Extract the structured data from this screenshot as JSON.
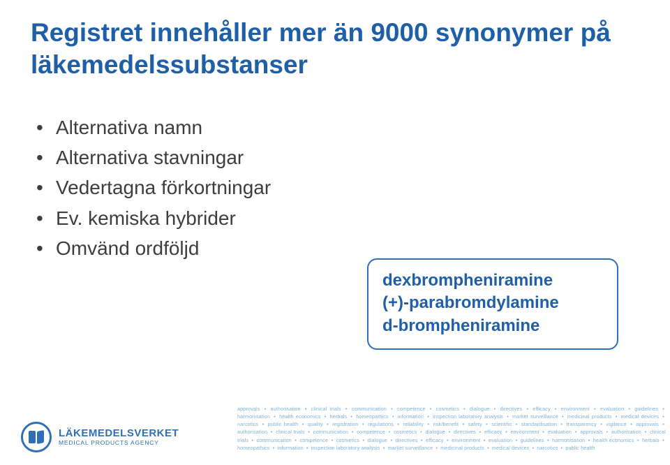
{
  "colors": {
    "title": "#1f5fa8",
    "body_text": "#3d3d3d",
    "callout_border": "#2f6fb3",
    "callout_text": "#1f5fa8",
    "logo": "#2f6fb3",
    "band_text": "#7db0d8",
    "bg": "#ffffff"
  },
  "title": "Registret innehåller mer än 9000 synonymer på läkemedelssubstanser",
  "bullets": [
    "Alternativa namn",
    "Alternativa stavningar",
    "Vedertagna förkortningar",
    "Ev. kemiska hybrider",
    "Omvänd ordföljd"
  ],
  "callout": {
    "lines": [
      "dexbrompheniramine",
      "(+)-parabromdylamine",
      "d-brompheniramine"
    ]
  },
  "logo": {
    "main": "LÄKEMEDELSVERKET",
    "sub": "MEDICAL PRODUCTS AGENCY"
  },
  "keyword_band": {
    "separator": "•",
    "words": [
      "approvals",
      "authorisation",
      "clinical trials",
      "communication",
      "competence",
      "cosmetics",
      "dialogue",
      "directives",
      "efficacy",
      "environment",
      "evaluation",
      "guidelines",
      "harmonisation",
      "health economics",
      "herbals",
      "homeopathics",
      "information",
      "inspection laboratory analysis",
      "market surveillance",
      "medicinal products",
      "medical devices",
      "narcotics",
      "public health",
      "quality",
      "registration",
      "regulations",
      "reliability",
      "risk/benefit",
      "safety",
      "scientific",
      "standardisation",
      "transparency",
      "vigilance",
      "approvals",
      "authorisation",
      "clinical trials",
      "communication",
      "competence",
      "cosmetics",
      "dialogue",
      "directives",
      "efficacy",
      "environment",
      "evaluation",
      "approvals",
      "authorisation",
      "clinical trials",
      "communication",
      "competence",
      "cosmetics",
      "dialogue",
      "directives",
      "efficacy",
      "environment",
      "evaluation",
      "guidelines",
      "harmonisation",
      "health economics",
      "herbals",
      "homeopathics",
      "information",
      "inspection laboratory analysis",
      "market surveillance",
      "medicinal products",
      "medical devices",
      "narcotics",
      "public health"
    ]
  }
}
